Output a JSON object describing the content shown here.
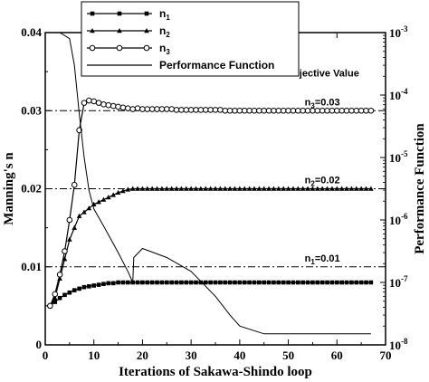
{
  "chart_data": {
    "type": "line",
    "xlabel": "Iterations of Sakawa-Shindo loop",
    "ylabel_left": "Manning's n",
    "ylabel_right": "Performance Function",
    "xlim": [
      0,
      70
    ],
    "ylim_left": [
      0,
      0.04
    ],
    "ylim_right": [
      1e-08,
      0.001
    ],
    "right_axis_scale": "log",
    "x_ticks": [
      "0",
      "10",
      "20",
      "30",
      "40",
      "50",
      "60",
      "70"
    ],
    "y_left_ticks": [
      "0",
      "0.01",
      "0.02",
      "0.03",
      "0.04"
    ],
    "y_right_ticks": [
      {
        "base": "10",
        "exp": "-8"
      },
      {
        "base": "10",
        "exp": "-7"
      },
      {
        "base": "10",
        "exp": "-6"
      },
      {
        "base": "10",
        "exp": "-5"
      },
      {
        "base": "10",
        "exp": "-4"
      },
      {
        "base": "10",
        "exp": "-3"
      }
    ],
    "legend_placement": "top-center",
    "series": [
      {
        "name": "n1",
        "label_main": "n",
        "label_sub": "1",
        "marker": "square",
        "axis": "left",
        "x": [
          1,
          2,
          3,
          4,
          5,
          6,
          7,
          8,
          9,
          10,
          11,
          12,
          13,
          14,
          15,
          16,
          17,
          18,
          19,
          20,
          21,
          22,
          23,
          24,
          25,
          26,
          27,
          28,
          29,
          30,
          31,
          32,
          33,
          34,
          35,
          36,
          37,
          38,
          39,
          40,
          41,
          42,
          43,
          44,
          45,
          46,
          47,
          48,
          49,
          50,
          51,
          52,
          53,
          54,
          55,
          56,
          57,
          58,
          59,
          60,
          61,
          62,
          63,
          64,
          65,
          66,
          67
        ],
        "y": [
          0.005,
          0.0055,
          0.006,
          0.0064,
          0.0067,
          0.007,
          0.0072,
          0.0074,
          0.0075,
          0.0076,
          0.0077,
          0.0078,
          0.0079,
          0.0079,
          0.008,
          0.008,
          0.008,
          0.008,
          0.008,
          0.008,
          0.008,
          0.008,
          0.008,
          0.008,
          0.008,
          0.008,
          0.008,
          0.008,
          0.008,
          0.008,
          0.008,
          0.008,
          0.008,
          0.008,
          0.008,
          0.008,
          0.008,
          0.008,
          0.008,
          0.008,
          0.008,
          0.008,
          0.008,
          0.008,
          0.008,
          0.008,
          0.008,
          0.008,
          0.008,
          0.008,
          0.008,
          0.008,
          0.008,
          0.008,
          0.008,
          0.008,
          0.008,
          0.008,
          0.008,
          0.008,
          0.008,
          0.008,
          0.008,
          0.008,
          0.008,
          0.008,
          0.008
        ]
      },
      {
        "name": "n2",
        "label_main": "n",
        "label_sub": "2",
        "marker": "triangle",
        "axis": "left",
        "x": [
          1,
          2,
          3,
          4,
          5,
          6,
          7,
          8,
          9,
          10,
          11,
          12,
          13,
          14,
          15,
          16,
          17,
          18,
          19,
          20,
          21,
          22,
          23,
          24,
          25,
          26,
          27,
          28,
          29,
          30,
          31,
          32,
          33,
          34,
          35,
          36,
          37,
          38,
          39,
          40,
          41,
          42,
          43,
          44,
          45,
          46,
          47,
          48,
          49,
          50,
          51,
          52,
          53,
          54,
          55,
          56,
          57,
          58,
          59,
          60,
          61,
          62,
          63,
          64,
          65,
          66,
          67
        ],
        "y": [
          0.005,
          0.006,
          0.0085,
          0.011,
          0.0135,
          0.015,
          0.0165,
          0.017,
          0.0175,
          0.018,
          0.0183,
          0.0186,
          0.0189,
          0.0192,
          0.0195,
          0.0197,
          0.0199,
          0.02,
          0.02,
          0.02,
          0.02,
          0.02,
          0.02,
          0.02,
          0.02,
          0.02,
          0.02,
          0.02,
          0.02,
          0.02,
          0.02,
          0.02,
          0.02,
          0.02,
          0.02,
          0.02,
          0.02,
          0.02,
          0.02,
          0.02,
          0.02,
          0.02,
          0.02,
          0.02,
          0.02,
          0.02,
          0.02,
          0.02,
          0.02,
          0.02,
          0.02,
          0.02,
          0.02,
          0.02,
          0.02,
          0.02,
          0.02,
          0.02,
          0.02,
          0.02,
          0.02,
          0.02,
          0.02,
          0.02,
          0.02,
          0.02,
          0.02
        ]
      },
      {
        "name": "n3",
        "label_main": "n",
        "label_sub": "3",
        "marker": "circle",
        "axis": "left",
        "x": [
          1,
          2,
          3,
          4,
          5,
          6,
          7,
          8,
          9,
          10,
          11,
          12,
          13,
          14,
          15,
          16,
          17,
          18,
          19,
          20,
          21,
          22,
          23,
          24,
          25,
          26,
          27,
          28,
          29,
          30,
          31,
          32,
          33,
          34,
          35,
          36,
          37,
          38,
          39,
          40,
          41,
          42,
          43,
          44,
          45,
          46,
          47,
          48,
          49,
          50,
          51,
          52,
          53,
          54,
          55,
          56,
          57,
          58,
          59,
          60,
          61,
          62,
          63,
          64,
          65,
          66,
          67
        ],
        "y": [
          0.005,
          0.0065,
          0.009,
          0.012,
          0.016,
          0.0205,
          0.0275,
          0.031,
          0.0313,
          0.0312,
          0.031,
          0.0308,
          0.0307,
          0.0306,
          0.0305,
          0.0304,
          0.0303,
          0.0302,
          0.0303,
          0.0302,
          0.0302,
          0.0302,
          0.0302,
          0.0302,
          0.0302,
          0.0302,
          0.0301,
          0.0301,
          0.0301,
          0.0301,
          0.0301,
          0.0301,
          0.0301,
          0.0301,
          0.0301,
          0.0301,
          0.03,
          0.03,
          0.03,
          0.03,
          0.03,
          0.03,
          0.03,
          0.03,
          0.03,
          0.03,
          0.03,
          0.03,
          0.03,
          0.03,
          0.03,
          0.03,
          0.03,
          0.03,
          0.03,
          0.03,
          0.03,
          0.03,
          0.03,
          0.03,
          0.03,
          0.03,
          0.03,
          0.03,
          0.03,
          0.03,
          0.03
        ]
      },
      {
        "name": "Performance Function",
        "marker": "none",
        "axis": "right",
        "x": [
          0,
          3,
          5,
          6,
          7,
          8,
          9,
          10,
          12,
          15,
          17,
          18,
          18.2,
          20,
          25,
          30,
          35,
          38,
          40,
          45,
          50,
          55,
          60,
          67
        ],
        "y": [
          0.001,
          0.001,
          0.0008,
          0.0003,
          5e-05,
          1e-05,
          3e-06,
          1.5e-06,
          8e-07,
          3e-07,
          1.5e-07,
          1e-07,
          2.5e-07,
          3.5e-07,
          2.5e-07,
          1.5e-07,
          6e-08,
          3e-08,
          2e-08,
          1.5e-08,
          1.5e-08,
          1.5e-08,
          1.5e-08,
          1.5e-08
        ]
      }
    ],
    "reference_lines": [
      {
        "y": 0.03,
        "style": "dash-dot",
        "label": "n3=0.03",
        "label_main": "n",
        "label_sub": "3",
        "label_value": "=0.03"
      },
      {
        "y": 0.02,
        "style": "dash-dot",
        "label": "n2=0.02",
        "label_main": "n",
        "label_sub": "2",
        "label_value": "=0.02"
      },
      {
        "y": 0.01,
        "style": "dash-dot",
        "label": "n1=0.01",
        "label_main": "n",
        "label_sub": "1",
        "label_value": "=0.01"
      }
    ],
    "annotations": [
      "Objective Value"
    ]
  }
}
